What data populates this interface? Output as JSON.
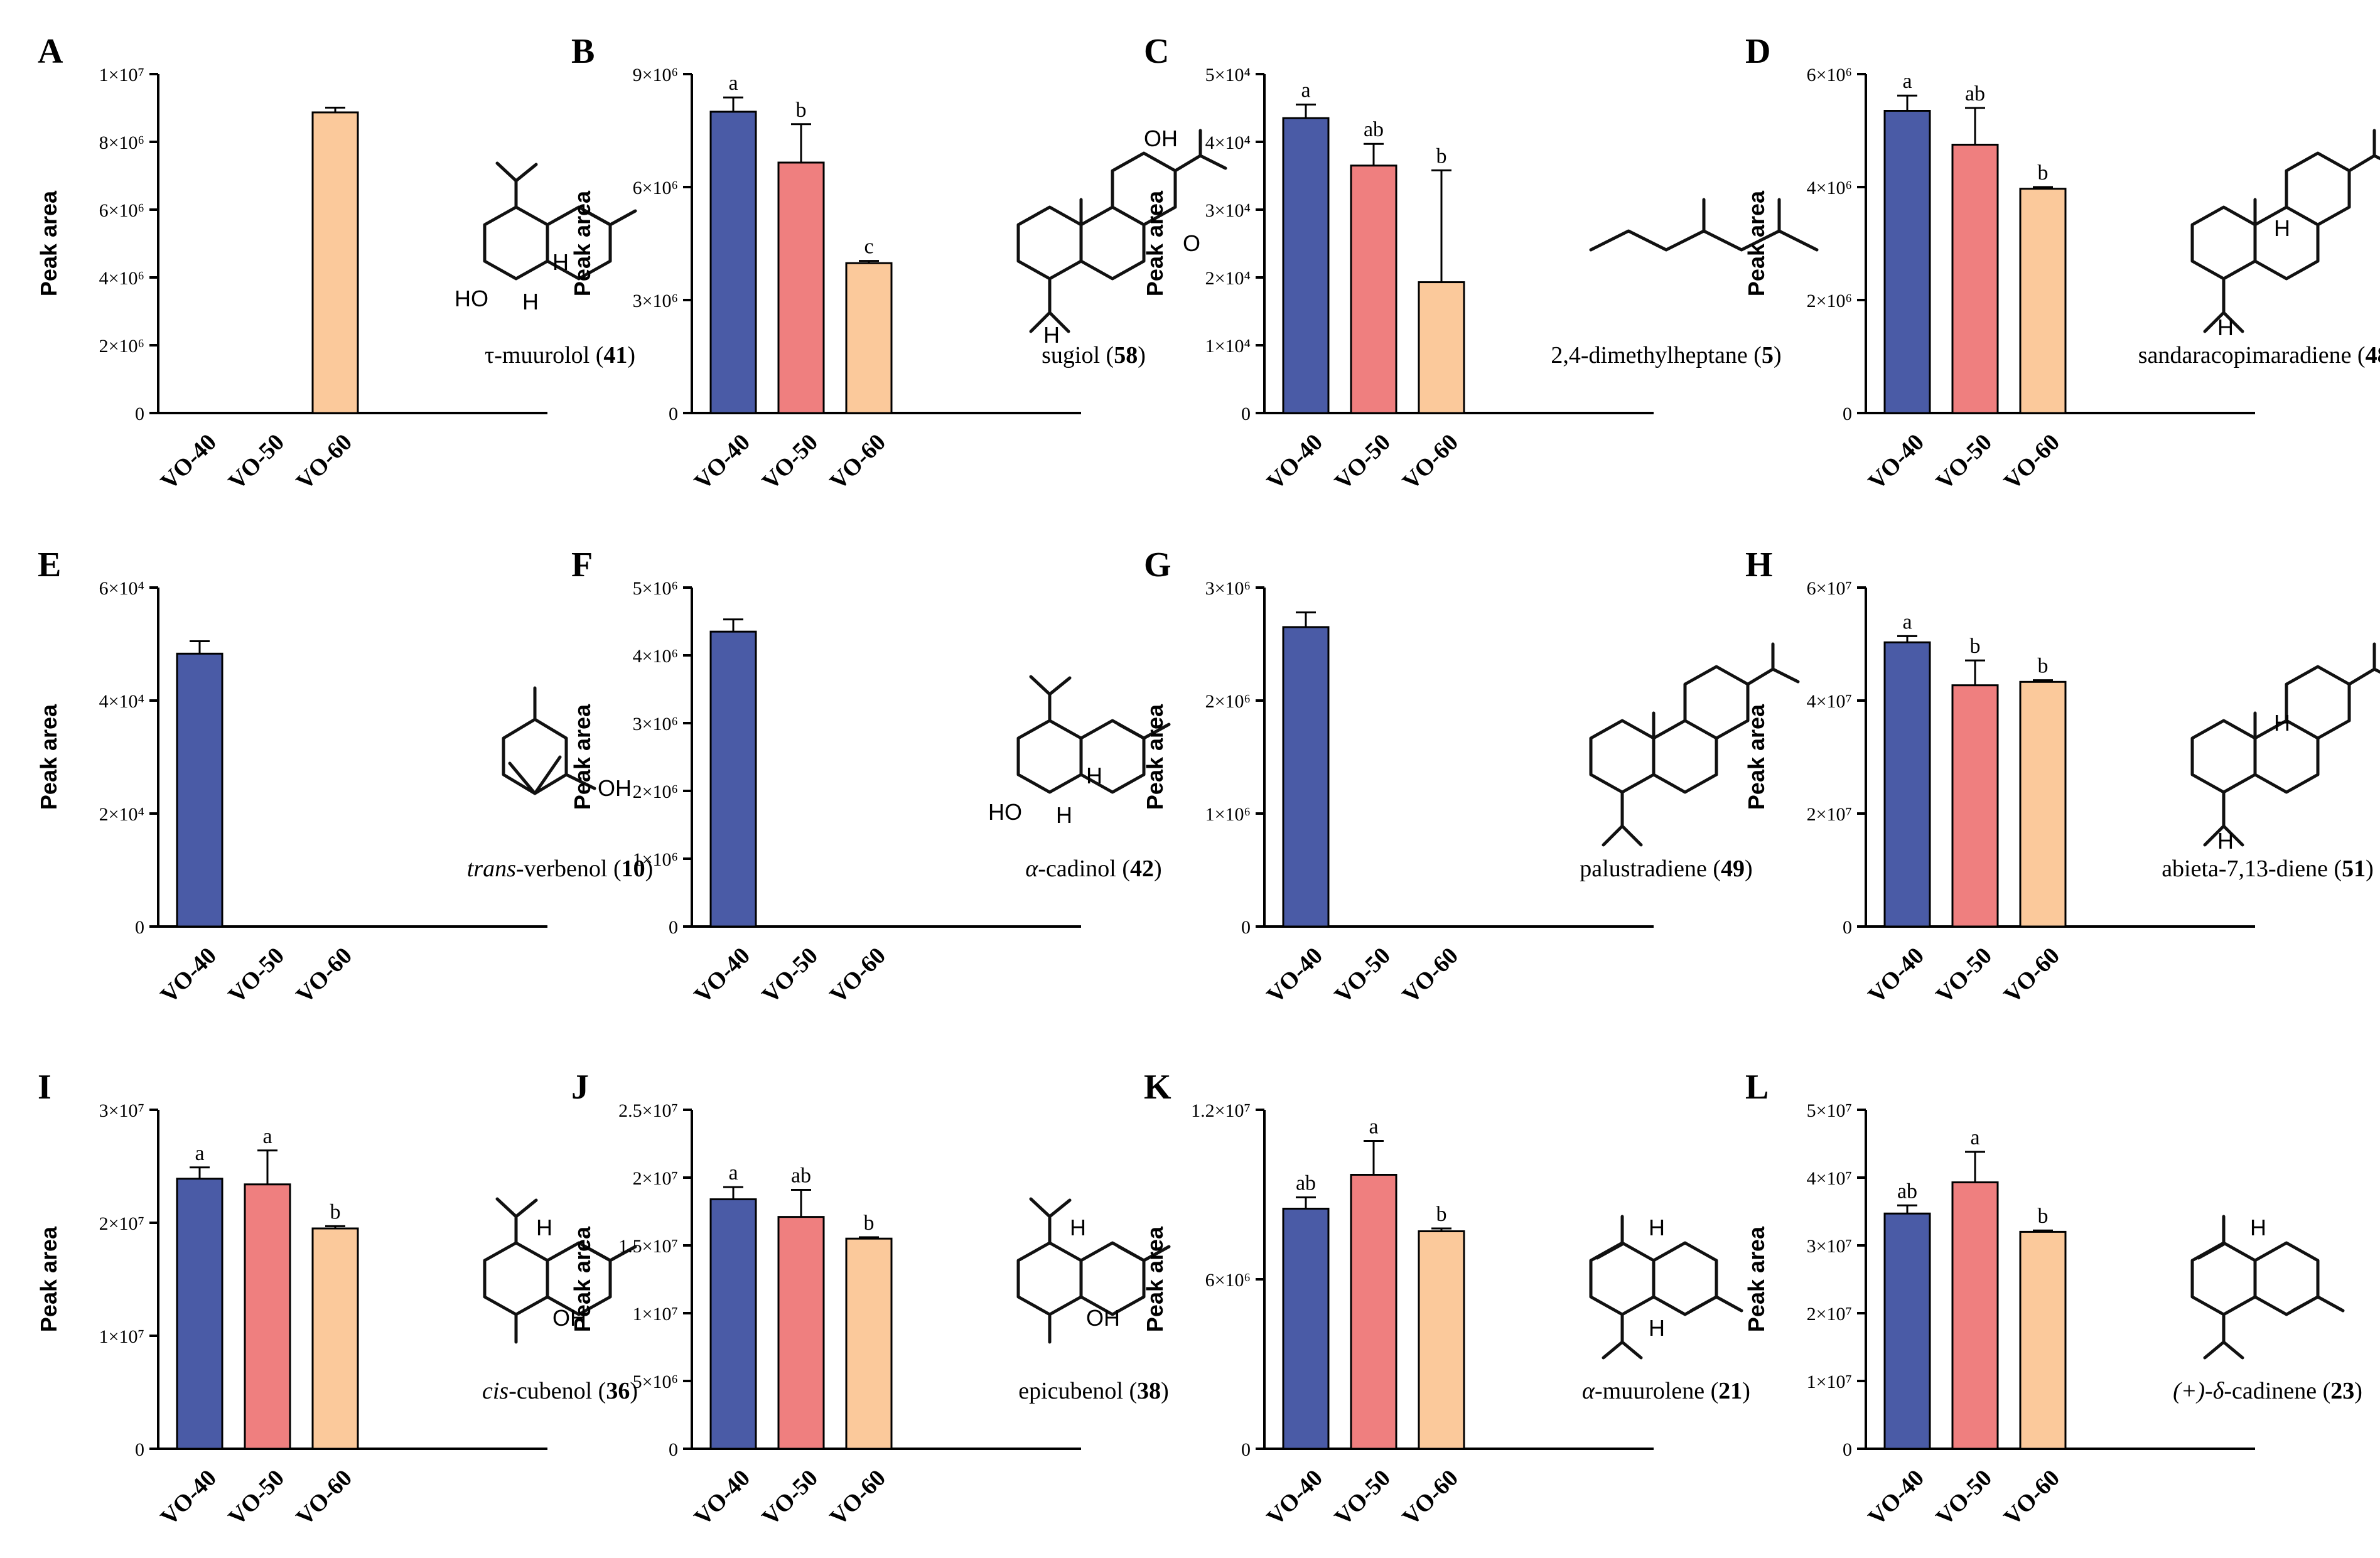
{
  "figure": {
    "colors": {
      "VO-40": "#4a5ba6",
      "VO-50": "#ef7f7f",
      "VO-60": "#fbc99b",
      "axis": "#000000"
    }
  },
  "chart_data": [
    {
      "type": "bar",
      "panel": "A",
      "categories": [
        "VO-40",
        "VO-50",
        "VO-60"
      ],
      "values": [
        0,
        0,
        8870000
      ],
      "errors": [
        0,
        0,
        140000
      ],
      "ylabel": "Peak area",
      "ylim": [
        0,
        10000000
      ],
      "yticks": [
        "0",
        "2×10⁶",
        "4×10⁶",
        "6×10⁶",
        "8×10⁶",
        "1×10⁷"
      ],
      "sig_letters": [
        "",
        "",
        ""
      ],
      "compound": {
        "name": "τ-muurolol",
        "number": "41",
        "atoms": [
          "H",
          "H",
          "HO"
        ]
      }
    },
    {
      "type": "bar",
      "panel": "B",
      "categories": [
        "VO-40",
        "VO-50",
        "VO-60"
      ],
      "values": [
        8000000,
        6650000,
        3980000
      ],
      "errors": [
        380000,
        1020000,
        60000
      ],
      "ylabel": "Peak area",
      "ylim": [
        0,
        9000000
      ],
      "yticks": [
        "0",
        "3×10⁶",
        "6×10⁶",
        "9×10⁶"
      ],
      "sig_letters": [
        "a",
        "b",
        "c"
      ],
      "compound": {
        "name": "sugiol",
        "number": "58",
        "atoms": [
          "OH",
          "O",
          "H"
        ]
      }
    },
    {
      "type": "bar",
      "panel": "C",
      "categories": [
        "VO-40",
        "VO-50",
        "VO-60"
      ],
      "values": [
        43500,
        36500,
        19300
      ],
      "errors": [
        2000,
        3200,
        16500
      ],
      "ylabel": "Peak area",
      "ylim": [
        0,
        50000
      ],
      "yticks": [
        "0",
        "1×10⁴",
        "2×10⁴",
        "3×10⁴",
        "4×10⁴",
        "5×10⁴"
      ],
      "sig_letters": [
        "a",
        "ab",
        "b"
      ],
      "compound": {
        "name": "2,4-dimethylheptane",
        "number": "5",
        "atoms": []
      }
    },
    {
      "type": "bar",
      "panel": "D",
      "categories": [
        "VO-40",
        "VO-50",
        "VO-60"
      ],
      "values": [
        5350000,
        4750000,
        3970000
      ],
      "errors": [
        270000,
        650000,
        30000
      ],
      "ylabel": "Peak area",
      "ylim": [
        0,
        6000000
      ],
      "yticks": [
        "0",
        "2×10⁶",
        "4×10⁶",
        "6×10⁶"
      ],
      "sig_letters": [
        "a",
        "ab",
        "b"
      ],
      "compound": {
        "name": "sandaracopimaradiene",
        "number": "48",
        "atoms": [
          "H",
          "H"
        ]
      }
    },
    {
      "type": "bar",
      "panel": "E",
      "categories": [
        "VO-40",
        "VO-50",
        "VO-60"
      ],
      "values": [
        48300,
        0,
        0
      ],
      "errors": [
        2200,
        0,
        0
      ],
      "ylabel": "Peak area",
      "ylim": [
        0,
        60000
      ],
      "yticks": [
        "0",
        "2×10⁴",
        "4×10⁴",
        "6×10⁴"
      ],
      "sig_letters": [
        "",
        "",
        ""
      ],
      "compound": {
        "name": "verbenol",
        "prefix": "trans",
        "number": "10",
        "atoms": [
          "OH"
        ]
      }
    },
    {
      "type": "bar",
      "panel": "F",
      "categories": [
        "VO-40",
        "VO-50",
        "VO-60"
      ],
      "values": [
        4350000,
        0,
        0
      ],
      "errors": [
        180000,
        0,
        0
      ],
      "ylabel": "Peak area",
      "ylim": [
        0,
        5000000
      ],
      "yticks": [
        "0",
        "1×10⁶",
        "2×10⁶",
        "3×10⁶",
        "4×10⁶",
        "5×10⁶"
      ],
      "sig_letters": [
        "",
        "",
        ""
      ],
      "compound": {
        "name": "cadinol",
        "prefix": "α",
        "number": "42",
        "atoms": [
          "H",
          "H",
          "HO"
        ]
      }
    },
    {
      "type": "bar",
      "panel": "G",
      "categories": [
        "VO-40",
        "VO-50",
        "VO-60"
      ],
      "values": [
        2650000,
        0,
        0
      ],
      "errors": [
        130000,
        0,
        0
      ],
      "ylabel": "Peak area",
      "ylim": [
        0,
        3000000
      ],
      "yticks": [
        "0",
        "1×10⁶",
        "2×10⁶",
        "3×10⁶"
      ],
      "sig_letters": [
        "",
        "",
        ""
      ],
      "compound": {
        "name": "palustradiene",
        "number": "49",
        "atoms": []
      }
    },
    {
      "type": "bar",
      "panel": "H",
      "categories": [
        "VO-40",
        "VO-50",
        "VO-60"
      ],
      "values": [
        50300000,
        42700000,
        43300000
      ],
      "errors": [
        1100000,
        4400000,
        300000
      ],
      "ylabel": "Peak area",
      "ylim": [
        0,
        60000000
      ],
      "yticks": [
        "0",
        "2×10⁷",
        "4×10⁷",
        "6×10⁷"
      ],
      "sig_letters": [
        "a",
        "b",
        "b"
      ],
      "compound": {
        "name": "abieta-7,13-diene",
        "number": "51",
        "atoms": [
          "H",
          "H"
        ]
      }
    },
    {
      "type": "bar",
      "panel": "I",
      "categories": [
        "VO-40",
        "VO-50",
        "VO-60"
      ],
      "values": [
        23900000,
        23400000,
        19500000
      ],
      "errors": [
        1000000,
        3000000,
        200000
      ],
      "ylabel": "Peak area",
      "ylim": [
        0,
        30000000
      ],
      "yticks": [
        "0",
        "1×10⁷",
        "2×10⁷",
        "3×10⁷"
      ],
      "sig_letters": [
        "a",
        "a",
        "b"
      ],
      "compound": {
        "name": "cubenol",
        "prefix": "cis",
        "number": "36",
        "atoms": [
          "H",
          "OH"
        ]
      }
    },
    {
      "type": "bar",
      "panel": "J",
      "categories": [
        "VO-40",
        "VO-50",
        "VO-60"
      ],
      "values": [
        18400000,
        17100000,
        15500000
      ],
      "errors": [
        900000,
        2000000,
        100000
      ],
      "ylabel": "Peak area",
      "ylim": [
        0,
        25000000
      ],
      "yticks": [
        "0",
        "5×10⁶",
        "1×10⁷",
        "1.5×10⁷",
        "2×10⁷",
        "2.5×10⁷"
      ],
      "sig_letters": [
        "a",
        "ab",
        "b"
      ],
      "compound": {
        "name": "epicubenol",
        "number": "38",
        "atoms": [
          "H",
          "OH"
        ]
      }
    },
    {
      "type": "bar",
      "panel": "K",
      "categories": [
        "VO-40",
        "VO-50",
        "VO-60"
      ],
      "values": [
        8500000,
        9700000,
        7700000
      ],
      "errors": [
        400000,
        1200000,
        100000
      ],
      "ylabel": "Peak area",
      "ylim": [
        0,
        12000000
      ],
      "yticks": [
        "0",
        "6×10⁶",
        "1.2×10⁷"
      ],
      "sig_letters": [
        "ab",
        "a",
        "b"
      ],
      "compound": {
        "name": "muurolene",
        "prefix": "α",
        "number": "21",
        "atoms": [
          "H",
          "H"
        ]
      }
    },
    {
      "type": "bar",
      "panel": "L",
      "categories": [
        "VO-40",
        "VO-50",
        "VO-60"
      ],
      "values": [
        34700000,
        39300000,
        32000000
      ],
      "errors": [
        1200000,
        4500000,
        200000
      ],
      "ylabel": "Peak area",
      "ylim": [
        0,
        50000000
      ],
      "yticks": [
        "0",
        "1×10⁷",
        "2×10⁷",
        "3×10⁷",
        "4×10⁷",
        "5×10⁷"
      ],
      "sig_letters": [
        "ab",
        "a",
        "b"
      ],
      "compound": {
        "name": "cadinene",
        "prefix": "(+)-δ",
        "number": "23",
        "atoms": [
          "H"
        ]
      }
    }
  ]
}
